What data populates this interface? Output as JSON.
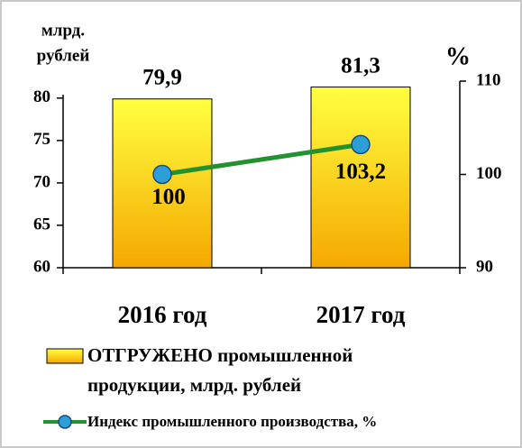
{
  "chart_data": {
    "type": "bar",
    "categories": [
      "2016 год",
      "2017 год"
    ],
    "y_label": [
      "млрд.",
      "рублей"
    ],
    "y2_label": "%",
    "ylim": [
      60,
      82
    ],
    "yticks": [
      60,
      65,
      70,
      75,
      80
    ],
    "y2lim": [
      90,
      110
    ],
    "y2ticks": [
      90,
      100,
      110
    ],
    "series": [
      {
        "name": "ОТГРУЖЕНО промышленной продукции, млрд. рублей",
        "type": "bar",
        "color": "#ffd700",
        "values": [
          79.9,
          81.3
        ],
        "value_labels": [
          "79,9",
          "81,3"
        ]
      },
      {
        "name": "Индекс промышленного производства, %",
        "type": "line",
        "axis": "y2",
        "color": "#22922e",
        "marker_color": "#2d9fd8",
        "values": [
          100,
          103.2
        ],
        "value_labels": [
          "100",
          "103,2"
        ]
      }
    ]
  }
}
